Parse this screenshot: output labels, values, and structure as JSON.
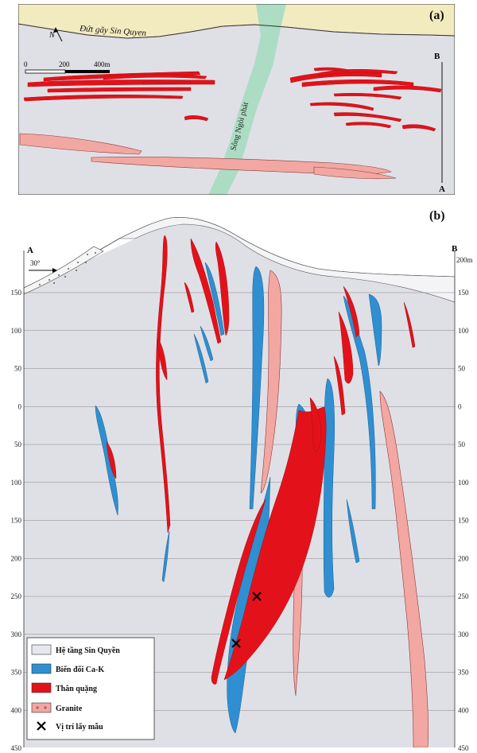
{
  "panel_a": {
    "label": "(a)",
    "fault_label": "Đứt gãy Sin Quyen",
    "river_label": "Sông Ngòi phát",
    "north_label": "N",
    "scale": [
      "0",
      "200",
      "400m"
    ],
    "section_start": "A",
    "section_end": "B"
  },
  "panel_b": {
    "label": "(b)",
    "left_end": "A",
    "right_end": "B",
    "dip_label": "30°",
    "top_right_unit": "200m",
    "depth_labels": [
      "150",
      "100",
      "50",
      "0",
      "50",
      "100",
      "150",
      "200",
      "250",
      "300",
      "350",
      "400",
      "450"
    ]
  },
  "legend": {
    "items": [
      {
        "label": "Hệ tầng Sin Quyền",
        "color": "#e7e8ee"
      },
      {
        "label": "Biến đổi Ca-K",
        "color": "#2f8fd0"
      },
      {
        "label": "Thân quặng",
        "color": "#e3121a"
      },
      {
        "label": "Granite",
        "color": "#f2a7a3"
      },
      {
        "label": "Vị trí lấy mẫu",
        "color": "#000000"
      }
    ]
  },
  "colors": {
    "host": "#dfe0e6",
    "ore": "#e3121a",
    "alteration": "#2f8fd0",
    "granite": "#f2a7a3",
    "river": "#a9dcc2",
    "fault_zone": "#f3ebc0"
  }
}
